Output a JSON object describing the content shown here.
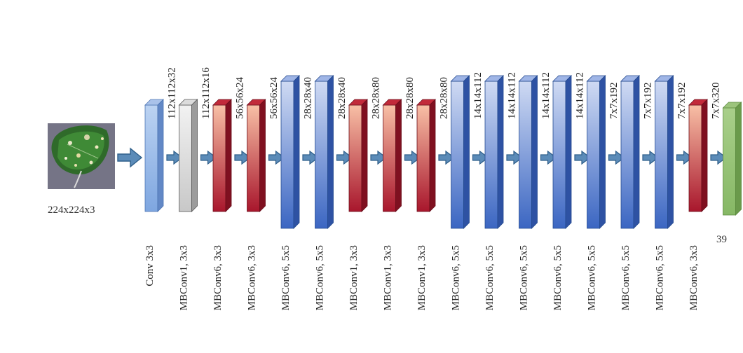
{
  "input": {
    "dims": "224x224x3"
  },
  "output": {
    "label": "39"
  },
  "colors": {
    "blue": {
      "light": "#cfdaf3",
      "dark": "#3b66c2",
      "side": "#2e52a3",
      "top": "#9fb5e6",
      "edge": "#244a8f"
    },
    "lightblue": {
      "light": "#bcd3f2",
      "dark": "#7ea6e0",
      "side": "#6288c6",
      "top": "#a9c2ea",
      "edge": "#4d75b3"
    },
    "gray": {
      "light": "#f2f2f2",
      "dark": "#c8c8c8",
      "side": "#9c9c9c",
      "top": "#dcdcdc",
      "edge": "#555555"
    },
    "red": {
      "light": "#f8c0a6",
      "dark": "#a8162c",
      "side": "#7f1020",
      "top": "#c22a3a",
      "edge": "#6a0d1a"
    },
    "green": {
      "light": "#a9cf8a",
      "dark": "#86b865",
      "side": "#6a9a4b",
      "top": "#9cc47c",
      "edge": "#5b8a3e"
    },
    "arrow": "#5b8bb8"
  },
  "layers": [
    {
      "op": "Conv 3x3",
      "dims": "",
      "color": "lightblue"
    },
    {
      "op": "MBConv1, 3x3",
      "dims": "112x112x32",
      "color": "gray"
    },
    {
      "op": "MBConv6, 3x3",
      "dims": "112x112x16",
      "color": "red"
    },
    {
      "op": "MBConv6, 3x3",
      "dims": "56x56x24",
      "color": "red"
    },
    {
      "op": "MBConv6, 5x5",
      "dims": "56x56x24",
      "color": "blue"
    },
    {
      "op": "MBConv6, 5x5",
      "dims": "28x28x40",
      "color": "blue"
    },
    {
      "op": "MBConv1, 3x3",
      "dims": "28x28x40",
      "color": "red"
    },
    {
      "op": "MBConv1, 3x3",
      "dims": "28x28x80",
      "color": "red"
    },
    {
      "op": "MBConv1, 3x3",
      "dims": "28x28x80",
      "color": "red"
    },
    {
      "op": "MBConv6, 5x5",
      "dims": "28x28x80",
      "color": "blue"
    },
    {
      "op": "MBConv6, 5x5",
      "dims": "14x14x112",
      "color": "blue"
    },
    {
      "op": "MBConv6, 5x5",
      "dims": "14x14x112",
      "color": "blue"
    },
    {
      "op": "MBConv6, 5x5",
      "dims": "14x14x112",
      "color": "blue"
    },
    {
      "op": "MBConv6, 5x5",
      "dims": "14x14x112",
      "color": "blue"
    },
    {
      "op": "MBConv6, 5x5",
      "dims": "7x7x192",
      "color": "blue"
    },
    {
      "op": "MBConv6, 5x5",
      "dims": "7x7x192",
      "color": "blue"
    },
    {
      "op": "MBConv6, 3x3",
      "dims": "7x7x192",
      "color": "red"
    },
    {
      "op": "",
      "dims": "7x7x320",
      "color": "green"
    }
  ]
}
